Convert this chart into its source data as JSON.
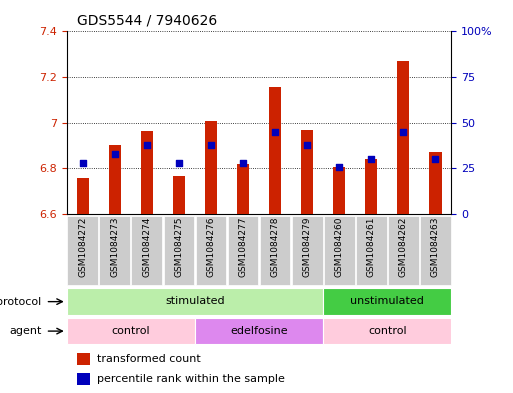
{
  "title": "GDS5544 / 7940626",
  "samples": [
    "GSM1084272",
    "GSM1084273",
    "GSM1084274",
    "GSM1084275",
    "GSM1084276",
    "GSM1084277",
    "GSM1084278",
    "GSM1084279",
    "GSM1084260",
    "GSM1084261",
    "GSM1084262",
    "GSM1084263"
  ],
  "bar_values": [
    6.76,
    6.905,
    6.963,
    6.765,
    7.01,
    6.82,
    7.155,
    6.97,
    6.808,
    6.84,
    7.27,
    6.872
  ],
  "blue_pct": [
    28,
    33,
    38,
    28,
    38,
    28,
    45,
    38,
    26,
    30,
    45,
    30
  ],
  "ylim_left": [
    6.6,
    7.4
  ],
  "ylim_right": [
    0,
    100
  ],
  "yticks_left": [
    6.6,
    6.8,
    7.0,
    7.2,
    7.4
  ],
  "ytick_labels_left": [
    "6.6",
    "6.8",
    "7",
    "7.2",
    "7.4"
  ],
  "yticks_right_vals": [
    0,
    25,
    50,
    75,
    100
  ],
  "ytick_labels_right": [
    "0",
    "25",
    "50",
    "75",
    "100%"
  ],
  "bar_color": "#cc2200",
  "blue_color": "#0000bb",
  "bar_bottom": 6.6,
  "bar_width": 0.38,
  "protocol_groups": [
    {
      "label": "stimulated",
      "start": 0,
      "end": 7,
      "color": "#bbeeaa"
    },
    {
      "label": "unstimulated",
      "start": 8,
      "end": 11,
      "color": "#44cc44"
    }
  ],
  "agent_groups": [
    {
      "label": "control",
      "start": 0,
      "end": 3,
      "color": "#ffccdd"
    },
    {
      "label": "edelfosine",
      "start": 4,
      "end": 7,
      "color": "#dd88ee"
    },
    {
      "label": "control",
      "start": 8,
      "end": 11,
      "color": "#ffccdd"
    }
  ],
  "col_bg_color": "#cccccc",
  "protocol_label": "protocol",
  "agent_label": "agent",
  "legend1_color": "#cc2200",
  "legend1_text": "transformed count",
  "legend2_color": "#0000bb",
  "legend2_text": "percentile rank within the sample",
  "title_fontsize": 10,
  "tick_fontsize": 8,
  "sample_fontsize": 6.5,
  "row_fontsize": 8
}
